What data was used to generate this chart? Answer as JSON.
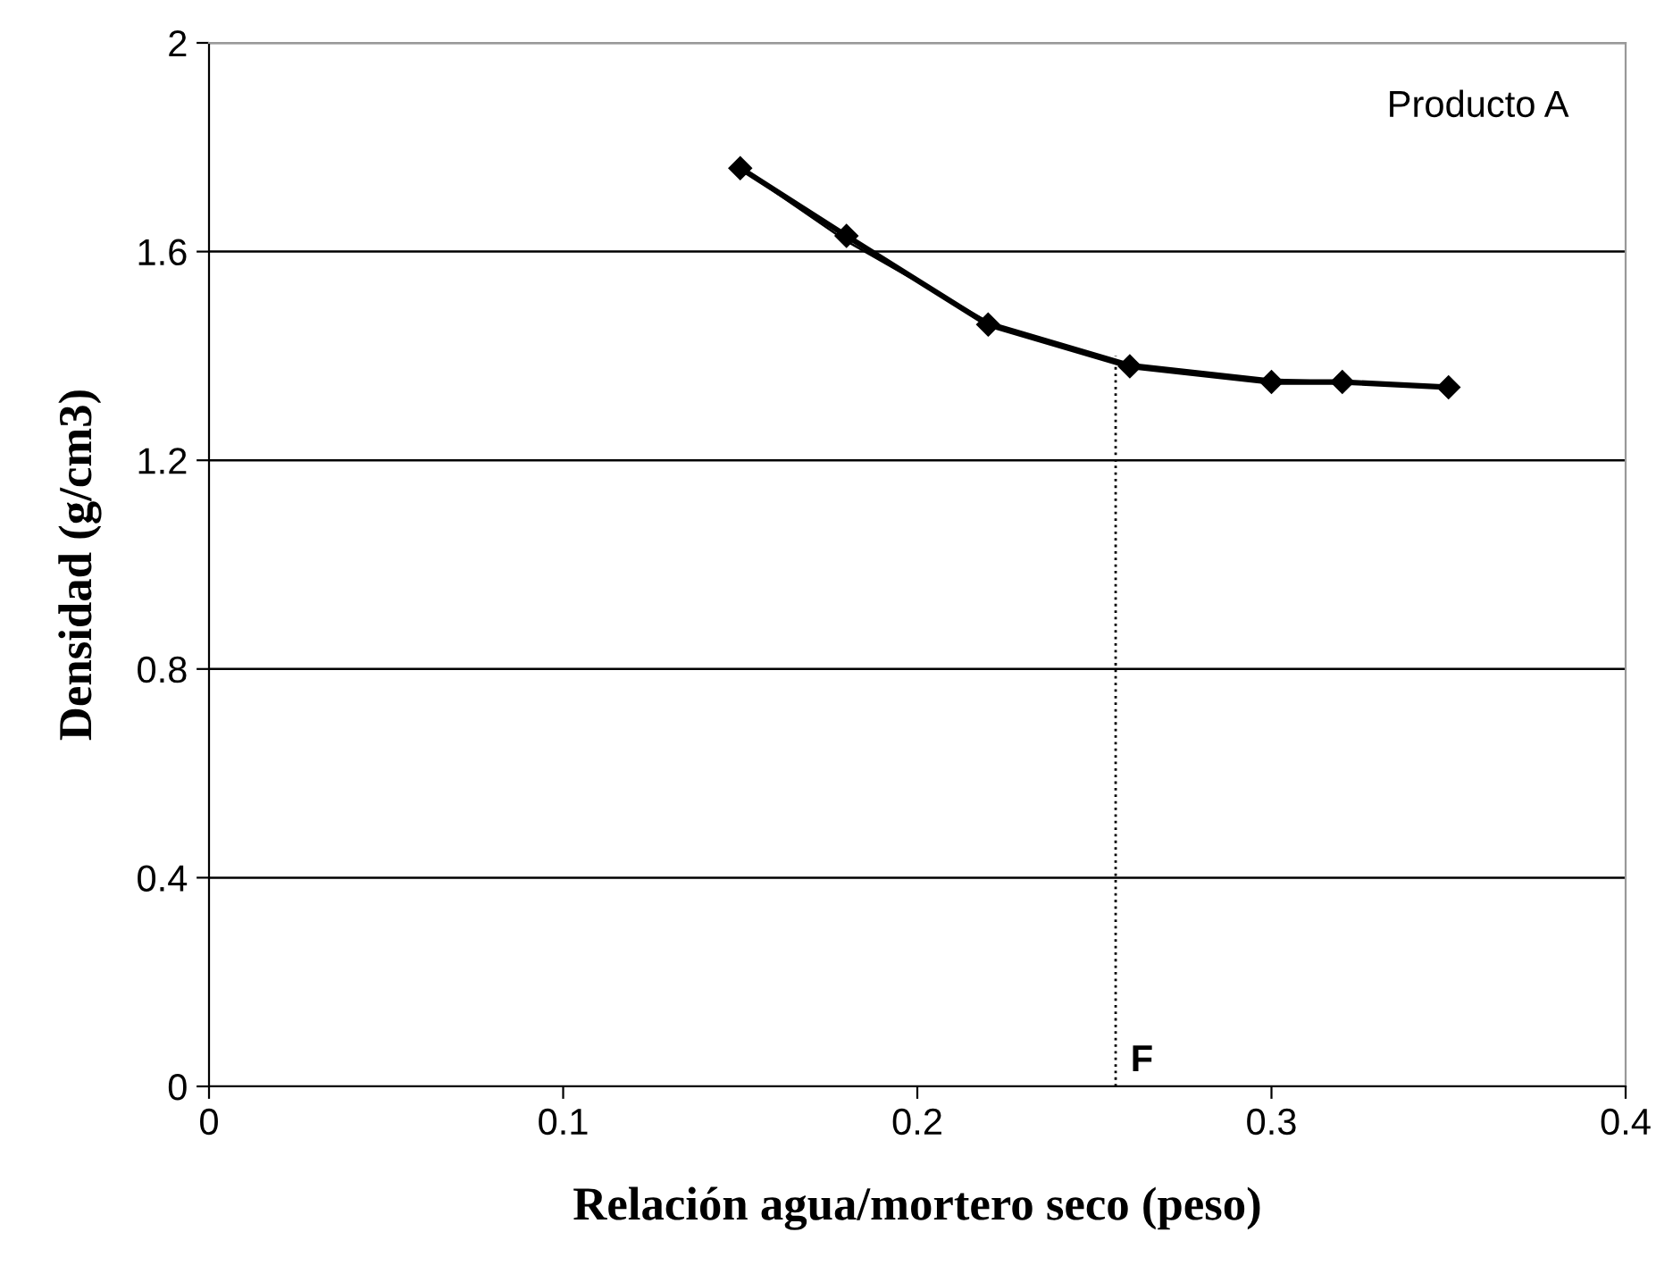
{
  "chart_data": {
    "type": "line",
    "xlabel": "Relación agua/mortero seco (peso)",
    "ylabel": "Densidad (g/cm3)",
    "xlim": [
      0,
      0.4
    ],
    "xticks": [
      0,
      0.1,
      0.2,
      0.3,
      0.4
    ],
    "ylim": [
      0,
      2
    ],
    "yticks": [
      0,
      0.4,
      0.8,
      1.2,
      1.6,
      2
    ],
    "grid": "y",
    "series": [
      {
        "color": "#000000",
        "marker": "diamond",
        "line_style": "solid",
        "x": [
          0.15,
          0.18,
          0.22,
          0.26,
          0.3,
          0.32,
          0.35
        ],
        "values": [
          1.76,
          1.63,
          1.46,
          1.38,
          1.35,
          1.35,
          1.34
        ]
      },
      {
        "color": "#000000",
        "marker": "none",
        "line_style": "solid",
        "x": [
          0.15,
          0.18,
          0.22,
          0.26,
          0.3,
          0.32,
          0.35
        ],
        "values": [
          1.76,
          1.62,
          1.465,
          1.385,
          1.355,
          1.35,
          1.34
        ]
      },
      {
        "color": "#000000",
        "marker": "none",
        "line_style": "dotted",
        "x": [
          0.256,
          0.256
        ],
        "values": [
          0,
          1.4
        ]
      }
    ],
    "annotations": [
      "Producto A",
      {
        "text": "F",
        "x": 0.256,
        "y": 0
      }
    ]
  }
}
